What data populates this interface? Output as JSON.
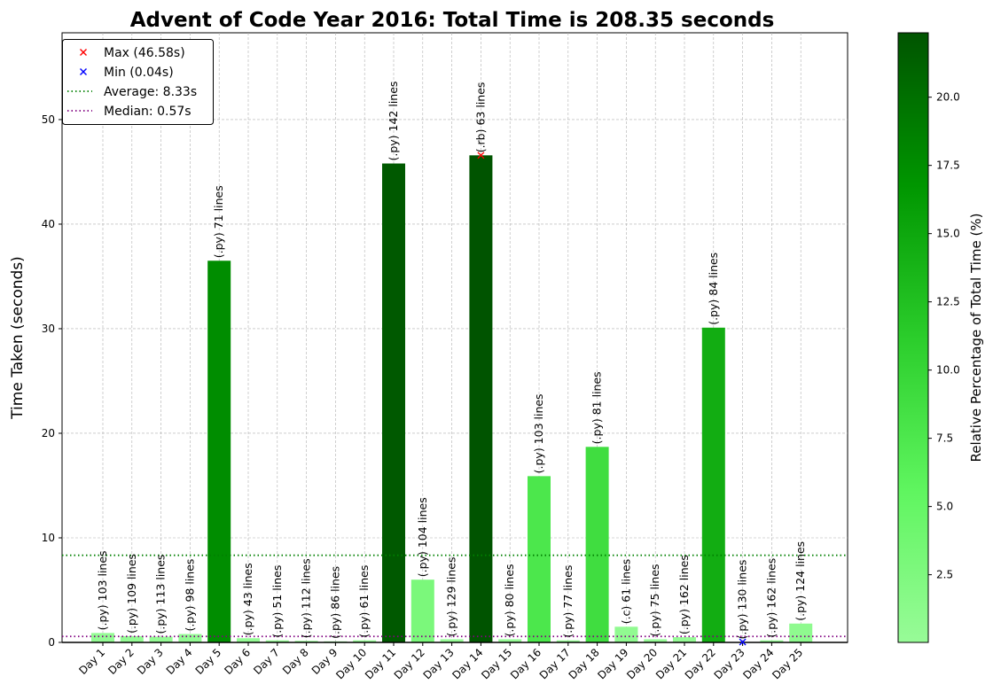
{
  "chart_data": {
    "type": "bar",
    "title": "Advent of Code Year 2016: Total Time is 208.35 seconds",
    "xlabel": "",
    "ylabel": "Time Taken (seconds)",
    "ylim": [
      0,
      58.3
    ],
    "yticks": [
      0,
      10,
      20,
      30,
      40,
      50
    ],
    "grid": true,
    "legend_position": "top-left",
    "categories": [
      "Day 1",
      "Day 2",
      "Day 3",
      "Day 4",
      "Day 5",
      "Day 6",
      "Day 7",
      "Day 8",
      "Day 9",
      "Day 10",
      "Day 11",
      "Day 12",
      "Day 13",
      "Day 14",
      "Day 15",
      "Day 16",
      "Day 17",
      "Day 18",
      "Day 19",
      "Day 20",
      "Day 21",
      "Day 22",
      "Day 23",
      "Day 24",
      "Day 25"
    ],
    "values": [
      0.9,
      0.6,
      0.55,
      0.8,
      36.5,
      0.4,
      0.2,
      0.15,
      0.1,
      0.2,
      45.8,
      6.0,
      0.3,
      46.58,
      0.3,
      15.9,
      0.2,
      18.7,
      1.5,
      0.3,
      0.5,
      30.1,
      0.04,
      0.2,
      1.8
    ],
    "bar_labels": [
      "(.py) 103 lines",
      "(.py) 109 lines",
      "(.py) 113 lines",
      "(.py) 98 lines",
      "(.py) 71 lines",
      "(.py) 43 lines",
      "(.py) 51 lines",
      "(.py) 112 lines",
      "(.py) 86 lines",
      "(.py) 61 lines",
      "(.py) 142 lines",
      "(.py) 104 lines",
      "(.py) 129 lines",
      "(.rb) 63 lines",
      "(.py) 80 lines",
      "(.py) 103 lines",
      "(.py) 77 lines",
      "(.py) 81 lines",
      "(.c) 61 lines",
      "(.py) 75 lines",
      "(.py) 162 lines",
      "(.py) 84 lines",
      "(.py) 130 lines",
      "(.py) 162 lines",
      "(.py) 124 lines"
    ],
    "legend": [
      {
        "label": "Max (46.58s)",
        "marker": "x",
        "color": "#ff0000"
      },
      {
        "label": "Min (0.04s)",
        "marker": "x",
        "color": "#0000ff"
      },
      {
        "label": "Average: 8.33s",
        "marker": "dotted-line",
        "color": "#008000"
      },
      {
        "label": "Median: 0.57s",
        "marker": "dotted-line",
        "color": "#800080"
      }
    ],
    "average": 8.33,
    "median": 0.57,
    "max": {
      "day": "Day 14",
      "value": 46.58
    },
    "min": {
      "day": "Day 23",
      "value": 0.04
    },
    "colorbar": {
      "label": "Relative Percentage of Total Time (%)",
      "ticks": [
        "2.5",
        "5.0",
        "7.5",
        "10.0",
        "12.5",
        "15.0",
        "17.5",
        "20.0"
      ],
      "tick_values": [
        2.5,
        5.0,
        7.5,
        10.0,
        12.5,
        15.0,
        17.5,
        20.0
      ],
      "range": [
        0.02,
        22.36
      ],
      "colors": [
        "#98fb98",
        "#5ff55f",
        "#2bcd2b",
        "#009600",
        "#005400"
      ]
    }
  }
}
